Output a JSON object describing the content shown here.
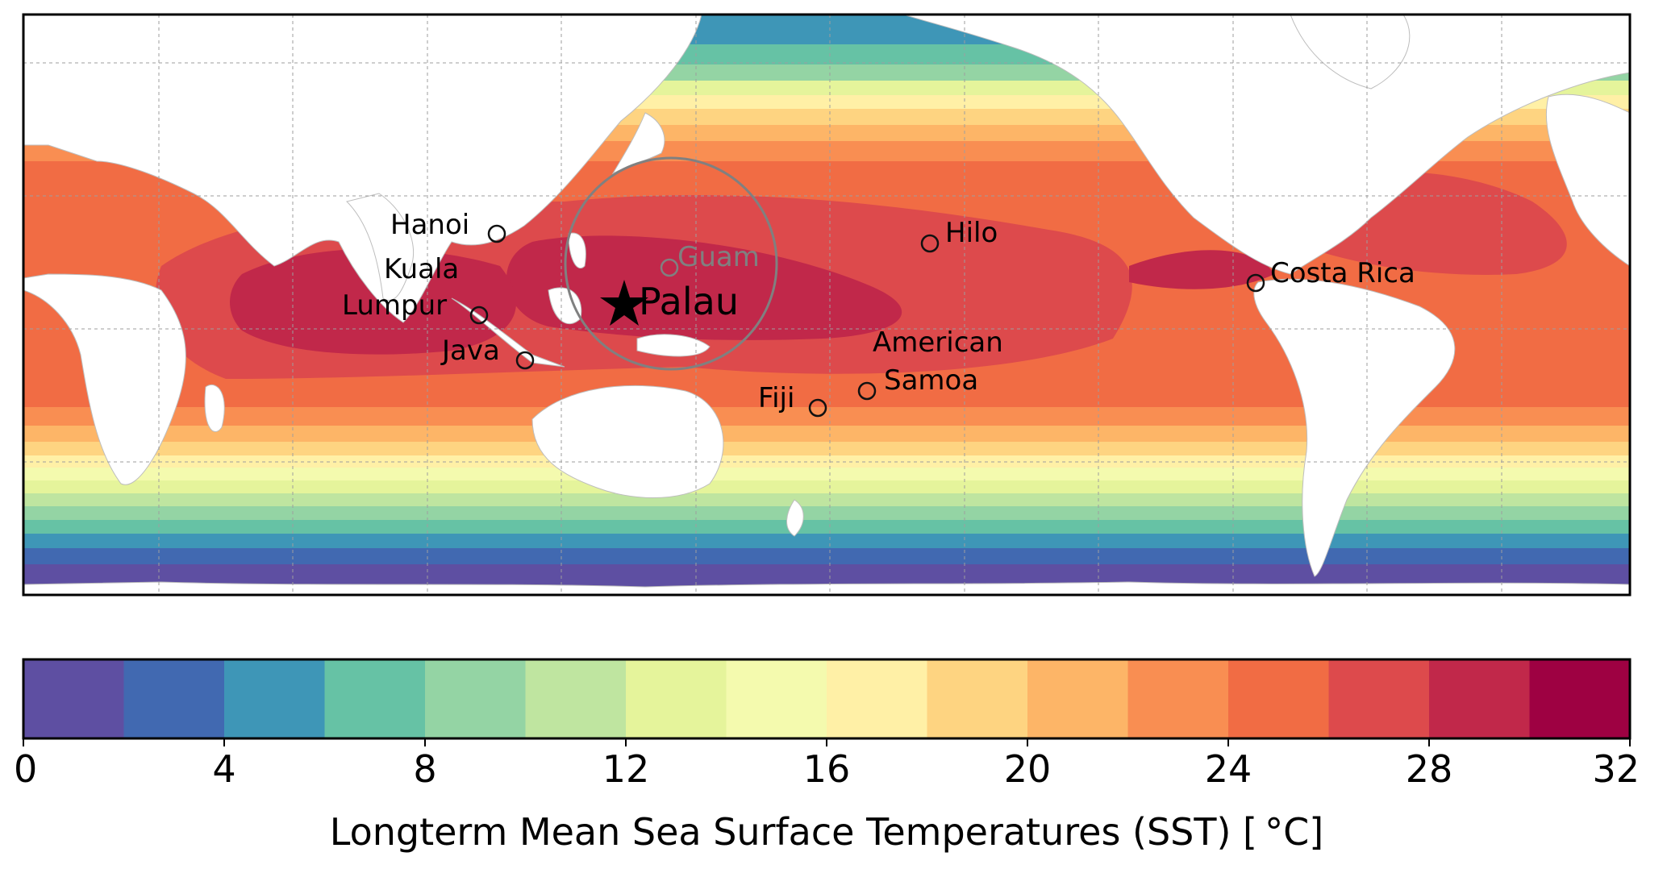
{
  "map": {
    "projection": "equirectangular, Pacific-centered",
    "gridlines": true,
    "background_land": "#ffffff",
    "ocean_field": "sea surface temperature bands",
    "locations": [
      {
        "name": "Hanoi",
        "style": "circle"
      },
      {
        "name": "Kuala",
        "style": "label"
      },
      {
        "name": "Lumpur",
        "style": "circle"
      },
      {
        "name": "Java",
        "style": "circle"
      },
      {
        "name": "Guam",
        "style": "grey-circle"
      },
      {
        "name": "Palau",
        "style": "star"
      },
      {
        "name": "Hilo",
        "style": "circle"
      },
      {
        "name": "Costa Rica",
        "style": "circle"
      },
      {
        "name": "American",
        "style": "label"
      },
      {
        "name": "Samoa",
        "style": "circle"
      },
      {
        "name": "Fiji",
        "style": "circle"
      }
    ],
    "highlight_ring": {
      "around": "Palau",
      "color": "#808080"
    }
  },
  "colorbar": {
    "label": "Longterm Mean Sea Surface Temperatures (SST) [ °C]",
    "ticks": [
      "0",
      "4",
      "8",
      "12",
      "16",
      "20",
      "24",
      "28",
      "32"
    ],
    "bins": [
      {
        "from": 0,
        "to": 2,
        "color": "#5e4fa2"
      },
      {
        "from": 2,
        "to": 4,
        "color": "#4169b1"
      },
      {
        "from": 4,
        "to": 6,
        "color": "#3e96b7"
      },
      {
        "from": 6,
        "to": 8,
        "color": "#66c2a5"
      },
      {
        "from": 8,
        "to": 10,
        "color": "#94d4a4"
      },
      {
        "from": 10,
        "to": 12,
        "color": "#bfe5a0"
      },
      {
        "from": 12,
        "to": 14,
        "color": "#e5f49b"
      },
      {
        "from": 14,
        "to": 16,
        "color": "#f4faae"
      },
      {
        "from": 16,
        "to": 18,
        "color": "#fff0a6"
      },
      {
        "from": 18,
        "to": 20,
        "color": "#fed481"
      },
      {
        "from": 20,
        "to": 22,
        "color": "#fdb567"
      },
      {
        "from": 22,
        "to": 24,
        "color": "#f98e52"
      },
      {
        "from": 24,
        "to": 26,
        "color": "#f16c44"
      },
      {
        "from": 26,
        "to": 28,
        "color": "#dd4a4c"
      },
      {
        "from": 28,
        "to": 30,
        "color": "#c1284a"
      },
      {
        "from": 30,
        "to": 32,
        "color": "#9e0142"
      }
    ]
  }
}
